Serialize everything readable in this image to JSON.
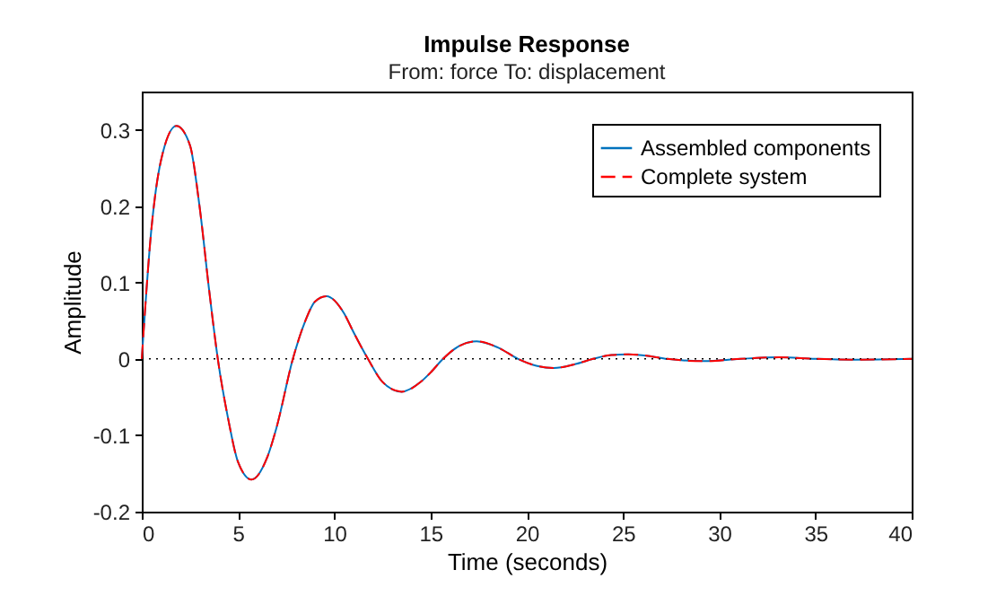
{
  "chart_data": {
    "type": "line",
    "title": "Impulse Response",
    "subtitle": "From: force  To: displacement",
    "xlabel": "Time (seconds)",
    "ylabel": "Amplitude",
    "x": [
      0,
      0.5,
      1,
      1.8,
      2.5,
      3,
      3.5,
      3.95,
      4.5,
      5,
      5.7,
      6.5,
      7,
      7.85,
      8.5,
      9,
      9.6,
      10.5,
      11,
      11.75,
      12.5,
      13.5,
      14.5,
      15,
      15.65,
      16.5,
      17.4,
      18.5,
      19.55,
      20.5,
      21.4,
      22.5,
      23.45,
      24.4,
      25.3,
      26.3,
      27.3,
      29.2,
      31.1,
      33.1,
      35,
      37,
      40
    ],
    "series": [
      {
        "name": "Assembled components",
        "color": "#0072bd",
        "line_style": "solid",
        "values": [
          0,
          0.17,
          0.26,
          0.305,
          0.28,
          0.2,
          0.09,
          0,
          -0.08,
          -0.135,
          -0.158,
          -0.13,
          -0.09,
          0,
          0.05,
          0.075,
          0.082,
          0.06,
          0.035,
          0,
          -0.03,
          -0.043,
          -0.03,
          -0.018,
          0,
          0.017,
          0.023,
          0.015,
          0,
          -0.009,
          -0.012,
          -0.007,
          0,
          0.005,
          0.006,
          0.004,
          0,
          -0.003,
          0,
          0.002,
          0,
          -0.001,
          0
        ]
      },
      {
        "name": "Complete system",
        "color": "#ff0000",
        "line_style": "dashed",
        "values": [
          0,
          0.17,
          0.26,
          0.305,
          0.28,
          0.2,
          0.09,
          0,
          -0.08,
          -0.135,
          -0.158,
          -0.13,
          -0.09,
          0,
          0.05,
          0.075,
          0.082,
          0.06,
          0.035,
          0,
          -0.03,
          -0.043,
          -0.03,
          -0.018,
          0,
          0.017,
          0.023,
          0.015,
          0,
          -0.009,
          -0.012,
          -0.007,
          0,
          0.005,
          0.006,
          0.004,
          0,
          -0.003,
          0,
          0.002,
          0,
          -0.001,
          0
        ]
      }
    ],
    "xlim": [
      0,
      40
    ],
    "xticks": [
      0,
      5,
      10,
      15,
      20,
      25,
      30,
      35,
      40
    ],
    "ylim": [
      -0.2,
      0.35
    ],
    "yticks": [
      -0.2,
      -0.1,
      0,
      0.1,
      0.2,
      0.3
    ],
    "ref_lines": [
      {
        "axis": "y",
        "value": 0,
        "line_style": "dotted",
        "color": "#000000"
      }
    ],
    "grid": false,
    "legend": "top right"
  }
}
